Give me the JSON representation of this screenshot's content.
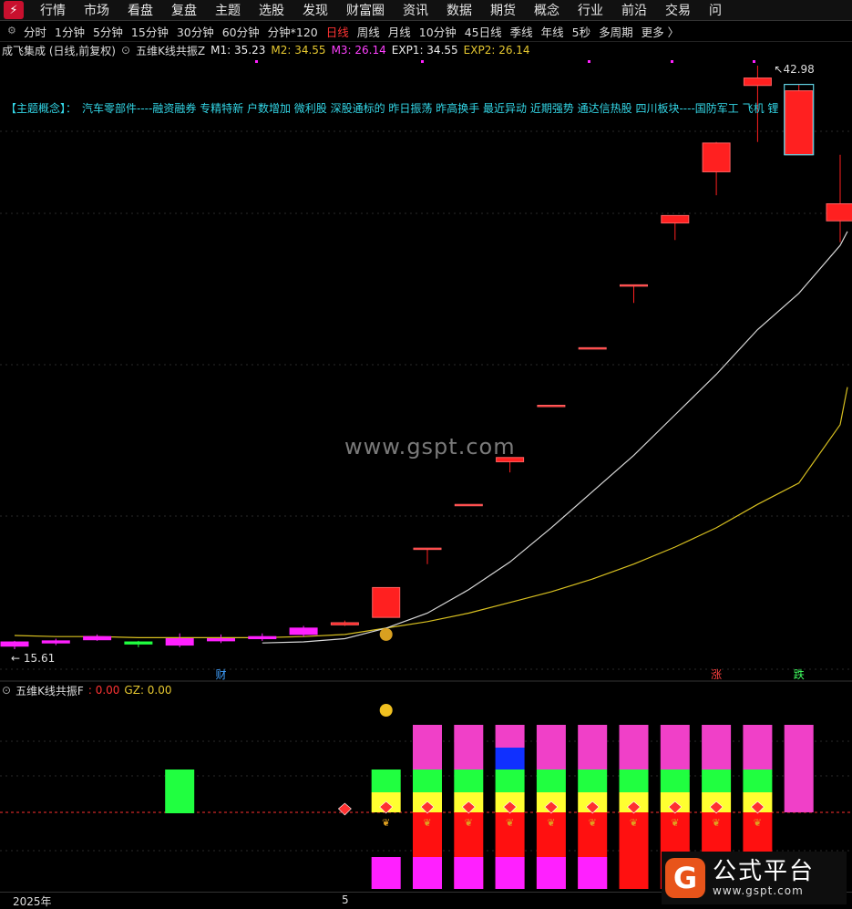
{
  "menu": [
    "行情",
    "市场",
    "看盘",
    "复盘",
    "主题",
    "选股",
    "发现",
    "财富圈",
    "资讯",
    "数据",
    "期货",
    "概念",
    "行业",
    "前沿",
    "交易",
    "问"
  ],
  "periods": [
    {
      "label": "分时",
      "active": false
    },
    {
      "label": "1分钟",
      "active": false
    },
    {
      "label": "5分钟",
      "active": false
    },
    {
      "label": "15分钟",
      "active": false
    },
    {
      "label": "30分钟",
      "active": false
    },
    {
      "label": "60分钟",
      "active": false
    },
    {
      "label": "分钟*120",
      "active": false
    },
    {
      "label": "日线",
      "active": true
    },
    {
      "label": "周线",
      "active": false
    },
    {
      "label": "月线",
      "active": false
    },
    {
      "label": "10分钟",
      "active": false
    },
    {
      "label": "45日线",
      "active": false
    },
    {
      "label": "季线",
      "active": false
    },
    {
      "label": "年线",
      "active": false
    },
    {
      "label": "5秒",
      "active": false
    },
    {
      "label": "多周期",
      "active": false
    },
    {
      "label": "更多 〉",
      "active": false
    }
  ],
  "stock": {
    "name": "成飞集成 (日线,前复权)",
    "indicator": "五维K线共振Z",
    "m1": "M1: 35.23",
    "m2": "M2: 34.55",
    "m3": "M3: 26.14",
    "exp1": "EXP1: 34.55",
    "exp2": "EXP2: 26.14"
  },
  "concept_line": "【主题概念】：　汽车零部件----融资融券 专精特新 户数增加 微利股 深股通标的 昨日振荡 昨高换手 最近异动 近期强势 通达信热股 四川板块----国防军工 飞机 锂",
  "watermark": "www.gspt.com",
  "sub_indicator": {
    "name": "五维K线共振F",
    "f": ": 0.00",
    "gz": "GZ: 0.00"
  },
  "dates": {
    "year": "2025年",
    "month": "5"
  },
  "badge": {
    "title": "公式平台",
    "url": "www.gspt.com"
  },
  "markers": {
    "cai": "财",
    "zhang": "涨",
    "die": "跌"
  },
  "colors": {
    "up": "#ff2020",
    "line_white": "#d8d8d8",
    "line_yellow": "#d8c020",
    "magenta": "#ff20ff",
    "green": "#20ff40",
    "blue": "#1030ff",
    "yellow": "#ffff30",
    "pink": "#f040c8"
  },
  "chart_data": {
    "type": "candlestick",
    "high_label": "42.98",
    "low_label": "15.61",
    "candles": [
      {
        "o": 15.75,
        "c": 15.95,
        "h": 16.0,
        "l": 15.61,
        "color": "magenta"
      },
      {
        "o": 15.9,
        "c": 16.0,
        "h": 16.1,
        "l": 15.8,
        "color": "magenta"
      },
      {
        "o": 16.05,
        "c": 16.2,
        "h": 16.3,
        "l": 16.0,
        "color": "magenta"
      },
      {
        "o": 15.95,
        "c": 15.85,
        "h": 16.0,
        "l": 15.7,
        "color": "green"
      },
      {
        "o": 15.8,
        "c": 16.1,
        "h": 16.35,
        "l": 15.7,
        "color": "magenta"
      },
      {
        "o": 16.0,
        "c": 16.1,
        "h": 16.3,
        "l": 15.9,
        "color": "magenta"
      },
      {
        "o": 16.1,
        "c": 16.2,
        "h": 16.35,
        "l": 16.0,
        "color": "magenta"
      },
      {
        "o": 16.3,
        "c": 16.6,
        "h": 16.7,
        "l": 16.2,
        "color": "magenta"
      },
      {
        "o": 16.75,
        "c": 16.85,
        "h": 16.95,
        "l": 16.7,
        "color": "up"
      },
      {
        "o": 17.1,
        "c": 18.5,
        "h": 18.5,
        "l": 17.1,
        "color": "up"
      },
      {
        "o": 20.3,
        "c": 20.35,
        "h": 20.35,
        "l": 19.6,
        "color": "up"
      },
      {
        "o": 22.35,
        "c": 22.4,
        "h": 22.4,
        "l": 22.35,
        "color": "up"
      },
      {
        "o": 24.4,
        "c": 24.6,
        "h": 24.6,
        "l": 23.9,
        "color": "up"
      },
      {
        "o": 27.0,
        "c": 27.05,
        "h": 27.05,
        "l": 27.0,
        "color": "up"
      },
      {
        "o": 29.7,
        "c": 29.75,
        "h": 29.75,
        "l": 29.7,
        "color": "up"
      },
      {
        "o": 32.65,
        "c": 32.7,
        "h": 32.7,
        "l": 31.85,
        "color": "up"
      },
      {
        "o": 35.6,
        "c": 35.95,
        "h": 35.95,
        "l": 34.8,
        "color": "up"
      },
      {
        "o": 38.0,
        "c": 39.35,
        "h": 39.4,
        "l": 36.9,
        "color": "up"
      },
      {
        "o": 42.05,
        "c": 42.4,
        "h": 42.98,
        "l": 39.4,
        "color": "up"
      },
      {
        "o": 38.8,
        "c": 41.8,
        "h": 42.1,
        "l": 38.8,
        "color": "up"
      },
      {
        "o": 35.7,
        "c": 36.5,
        "h": 38.8,
        "l": 34.7,
        "color": "up"
      }
    ],
    "ma_white": [
      null,
      null,
      null,
      null,
      null,
      null,
      15.9,
      15.95,
      16.1,
      16.6,
      17.3,
      18.4,
      19.7,
      21.3,
      23.0,
      24.7,
      26.6,
      28.5,
      30.6,
      32.3,
      34.55
    ],
    "ma_yellow": [
      16.25,
      16.2,
      16.2,
      16.15,
      16.15,
      16.15,
      16.15,
      16.2,
      16.3,
      16.6,
      16.9,
      17.3,
      17.8,
      18.3,
      18.9,
      19.6,
      20.4,
      21.3,
      22.4,
      23.4,
      26.14
    ],
    "sub_columns": [
      {
        "i": 4,
        "segs": [
          "green"
        ]
      },
      {
        "i": 9,
        "segs": [
          "magenta",
          "red_gem",
          "yellow",
          "green"
        ]
      },
      {
        "i": 10,
        "segs": [
          "magenta",
          "red",
          "red",
          "yellow",
          "green",
          "pink"
        ]
      },
      {
        "i": 11,
        "segs": [
          "magenta",
          "red",
          "red",
          "yellow",
          "green",
          "pink"
        ]
      },
      {
        "i": 12,
        "segs": [
          "magenta",
          "red",
          "red",
          "yellow",
          "green",
          "blue",
          "pink"
        ]
      },
      {
        "i": 13,
        "segs": [
          "magenta",
          "red",
          "red",
          "yellow",
          "green",
          "pink"
        ]
      },
      {
        "i": 14,
        "segs": [
          "magenta",
          "red",
          "red",
          "yellow",
          "green",
          "pink"
        ]
      },
      {
        "i": 15,
        "segs": [
          "red",
          "red",
          "red",
          "yellow",
          "green",
          "pink"
        ]
      },
      {
        "i": 16,
        "segs": [
          "red",
          "red",
          "red",
          "yellow",
          "green",
          "pink"
        ]
      },
      {
        "i": 17,
        "segs": [
          "red",
          "red",
          "red",
          "yellow",
          "green",
          "pink"
        ]
      },
      {
        "i": 18,
        "segs": [
          "red",
          "red",
          "red",
          "yellow",
          "green",
          "pink"
        ]
      },
      {
        "i": 19,
        "segs": [
          "pink_tall"
        ]
      }
    ]
  }
}
